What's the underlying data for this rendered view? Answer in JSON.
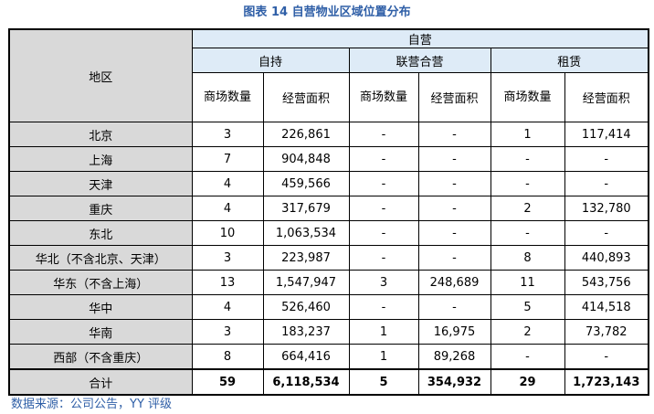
{
  "title": "图表 14 自营物业区域位置分布",
  "header": {
    "region": "地区",
    "group": "自营",
    "sub": [
      "自持",
      "联营合营",
      "租赁"
    ],
    "cols": [
      "商场数量",
      "经营面积",
      "商场数量",
      "经营面积",
      "商场数量",
      "经营面积"
    ]
  },
  "rows": [
    {
      "region": "北京",
      "v": [
        "3",
        "226,861",
        "-",
        "-",
        "1",
        "117,414"
      ]
    },
    {
      "region": "上海",
      "v": [
        "7",
        "904,848",
        "-",
        "-",
        "-",
        "-"
      ]
    },
    {
      "region": "天津",
      "v": [
        "4",
        "459,566",
        "-",
        "-",
        "-",
        "-"
      ]
    },
    {
      "region": "重庆",
      "v": [
        "4",
        "317,679",
        "-",
        "-",
        "2",
        "132,780"
      ]
    },
    {
      "region": "东北",
      "v": [
        "10",
        "1,063,534",
        "-",
        "-",
        "-",
        "-"
      ]
    },
    {
      "region": "华北（不含北京、天津）",
      "v": [
        "3",
        "223,987",
        "-",
        "-",
        "8",
        "440,893"
      ]
    },
    {
      "region": "华东（不含上海）",
      "v": [
        "13",
        "1,547,947",
        "3",
        "248,689",
        "11",
        "543,756"
      ]
    },
    {
      "region": "华中",
      "v": [
        "4",
        "526,460",
        "-",
        "-",
        "5",
        "414,518"
      ]
    },
    {
      "region": "华南",
      "v": [
        "3",
        "183,237",
        "1",
        "16,975",
        "2",
        "73,782"
      ]
    },
    {
      "region": "西部（不含重庆）",
      "v": [
        "8",
        "664,416",
        "1",
        "89,268",
        "-",
        "-"
      ]
    }
  ],
  "total": {
    "region": "合计",
    "v": [
      "59",
      "6,118,534",
      "5",
      "354,932",
      "29",
      "1,723,143"
    ]
  },
  "source": "数据来源：公司公告，YY 评级"
}
